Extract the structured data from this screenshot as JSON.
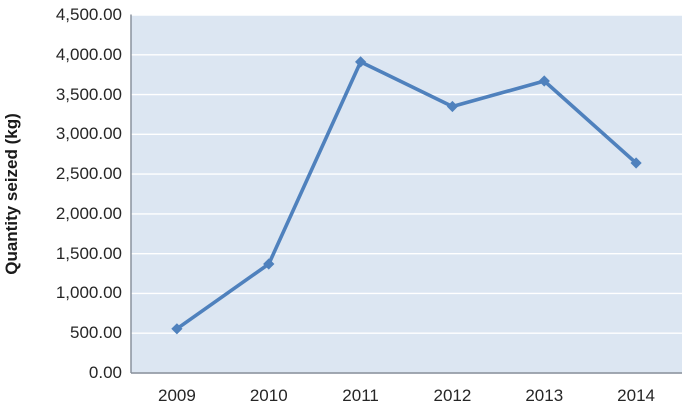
{
  "chart_data": {
    "type": "line",
    "title": "",
    "xlabel": "",
    "ylabel": "Quantity seized (kg)",
    "categories": [
      "2009",
      "2010",
      "2011",
      "2012",
      "2013",
      "2014"
    ],
    "series": [
      {
        "name": "Quantity seized (kg)",
        "values": [
          555,
          1370,
          3910,
          3350,
          3670,
          2640
        ]
      }
    ],
    "ylim": [
      0,
      4500
    ],
    "ytick_step": 500,
    "ytick_labels": [
      "0.00",
      "500.00",
      "1,000.00",
      "1,500.00",
      "2,000.00",
      "2,500.00",
      "3,000.00",
      "3,500.00",
      "4,000.00",
      "4,500.00"
    ],
    "grid": "horizontal",
    "legend": "none",
    "marker": "diamond",
    "colors": {
      "line": "#4F81BD",
      "plot_bg": "#DCE6F2",
      "gridline": "#FFFFFF",
      "axis_line": "#848C98",
      "text": "#262626"
    }
  }
}
